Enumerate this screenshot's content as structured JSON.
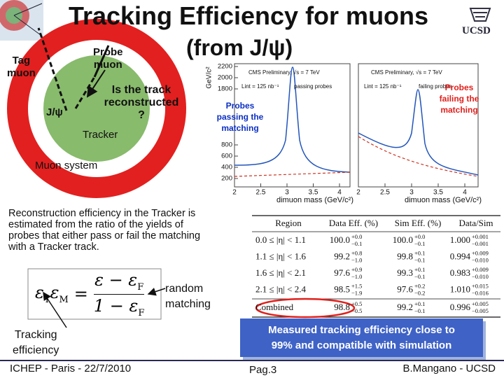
{
  "header": {
    "title": "Tracking Efficiency for muons",
    "subtitle": "(from J/ψ)",
    "logo_text": "UCSD"
  },
  "diagram": {
    "tag_muon": [
      "Tag",
      "muon"
    ],
    "probe_muon": [
      "Probe",
      "muon"
    ],
    "question": [
      "Is the track",
      "reconstructed",
      "?"
    ],
    "jpsi": "J/ψ",
    "tracker": "Tracker",
    "muon_system": "Muon system"
  },
  "plots": [
    {
      "header": "CMS Preliminary, √s = 7 TeV",
      "lumi": "Lint = 125 nb⁻¹",
      "label": "passing probes",
      "x_label": "dimuon mass (GeV/c²)",
      "y_label": "GeV/c²",
      "xlim": [
        2,
        4.2
      ],
      "xticks": [
        2,
        2.5,
        3,
        3.5,
        4
      ],
      "ylim": [
        50,
        2250
      ],
      "yticks": [
        200,
        400,
        600,
        800,
        1800,
        2000,
        2200
      ],
      "annotation": [
        "Probes",
        "passing the",
        "matching"
      ]
    },
    {
      "header": "CMS Preliminary, √s = 7 TeV",
      "lumi": "Lint = 125 nb⁻¹",
      "label": "failing probes",
      "x_label": "dimuon mass (GeV/c²)",
      "xlim": [
        2,
        4.25
      ],
      "xticks": [
        2,
        2.5,
        3,
        3.5,
        4
      ],
      "annotation": [
        "Probes",
        "failing the",
        "matching"
      ]
    }
  ],
  "description": "Reconstruction efficiency in the Tracker is estimated from the ratio of the yields of probes that either pass or fail the matching with a Tracker track.",
  "formula": {
    "lhs": [
      {
        "base": "ε",
        "sub": "T"
      },
      {
        "base": "ε",
        "sub": "M"
      }
    ],
    "eq": "=",
    "num": {
      "base": "ε − ε",
      "sub": "F"
    },
    "den": {
      "base": "1 − ε",
      "sub": "F"
    }
  },
  "annotations": {
    "random_matching": [
      "random",
      "matching"
    ],
    "tracking_efficiency": [
      "Tracking",
      "efficiency"
    ]
  },
  "table": {
    "header": [
      "Region",
      "Data Eff. (%)",
      "Sim Eff. (%)",
      "Data/Sim"
    ],
    "rows": [
      [
        "0.0 ≤ |η| < 1.1",
        [
          "100.0",
          "+0.0",
          "−0.1"
        ],
        [
          "100.0",
          "+0.0",
          "−0.1"
        ],
        [
          "1.000",
          "+0.001",
          "−0.001"
        ]
      ],
      [
        "1.1 ≤ |η| < 1.6",
        [
          "99.2",
          "+0.8",
          "−1.0"
        ],
        [
          "99.8",
          "+0.1",
          "−0.1"
        ],
        [
          "0.994",
          "+0.009",
          "−0.010"
        ]
      ],
      [
        "1.6 ≤ |η| < 2.1",
        [
          "97.6",
          "+0.9",
          "−1.0"
        ],
        [
          "99.3",
          "+0.1",
          "−0.1"
        ],
        [
          "0.983",
          "+0.009",
          "−0.010"
        ]
      ],
      [
        "2.1 ≤ |η| < 2.4",
        [
          "98.5",
          "+1.5",
          "−1.9"
        ],
        [
          "97.6",
          "+0.2",
          "−0.2"
        ],
        [
          "1.010",
          "+0.015",
          "−0.016"
        ]
      ],
      [
        "Combined",
        [
          "98.8",
          "+0.5",
          "−0.5"
        ],
        [
          "99.2",
          "+0.1",
          "−0.1"
        ],
        [
          "0.996",
          "+0.005",
          "−0.005"
        ]
      ]
    ]
  },
  "conclusion": [
    "Measured tracking efficiency close to",
    "99% and compatible with simulation"
  ],
  "footer": {
    "left": "ICHEP - Paris - 22/7/2010",
    "center": "Pag.3",
    "right": "B.Mangano - UCSD"
  }
}
